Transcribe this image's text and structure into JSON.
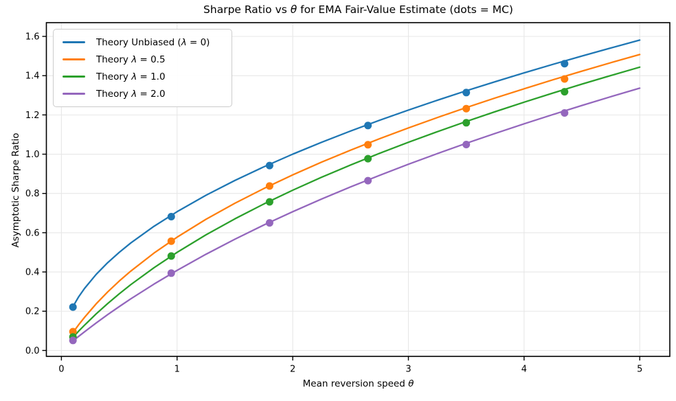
{
  "figure": {
    "title": "Sharpe Ratio vs θ for EMA Fair-Value Estimate (dots = MC)",
    "xlabel": "Mean reversion speed θ",
    "ylabel": "Asymptotic Sharpe Ratio"
  },
  "colors": {
    "blue": "#1f77b4",
    "orange": "#ff7f0e",
    "green": "#2ca02c",
    "purple": "#9467bd",
    "grid": "#e7e7e7",
    "spine": "#000000"
  },
  "legend": {
    "position": "upper left",
    "items": [
      {
        "label": "Theory Unbiased (λ = 0)",
        "color": "#1f77b4"
      },
      {
        "label": "Theory λ = 0.5",
        "color": "#ff7f0e"
      },
      {
        "label": "Theory λ = 1.0",
        "color": "#2ca02c"
      },
      {
        "label": "Theory λ = 2.0",
        "color": "#9467bd"
      }
    ]
  },
  "chart_data": {
    "type": "line",
    "title": "Sharpe Ratio vs θ for EMA Fair-Value Estimate (dots = MC)",
    "xlabel": "Mean reversion speed θ",
    "ylabel": "Asymptotic Sharpe Ratio",
    "xlim": [
      -0.13,
      5.26
    ],
    "ylim": [
      -0.03,
      1.67
    ],
    "x_ticks": [
      0,
      1,
      2,
      3,
      4,
      5
    ],
    "x_tick_labels": [
      "0",
      "1",
      "2",
      "3",
      "4",
      "5"
    ],
    "y_ticks": [
      0.0,
      0.2,
      0.4,
      0.6,
      0.8,
      1.0,
      1.2,
      1.4,
      1.6
    ],
    "y_tick_labels": [
      "0.0",
      "0.2",
      "0.4",
      "0.6",
      "0.8",
      "1.0",
      "1.2",
      "1.4",
      "1.6"
    ],
    "grid": true,
    "legend_position": "upper left",
    "curve_x": [
      0.1,
      0.15,
      0.2,
      0.3,
      0.4,
      0.5,
      0.6,
      0.8,
      1.0,
      1.25,
      1.5,
      1.75,
      2.0,
      2.25,
      2.5,
      2.75,
      3.0,
      3.25,
      3.5,
      3.75,
      4.0,
      4.25,
      4.5,
      4.75,
      5.0
    ],
    "series": [
      {
        "name": "Theory Unbiased (λ = 0)",
        "lambda": 0,
        "color": "#1f77b4",
        "y": [
          0.2236,
          0.2739,
          0.3162,
          0.3873,
          0.4472,
          0.5,
          0.5477,
          0.6325,
          0.7071,
          0.7906,
          0.866,
          0.9354,
          1.0,
          1.0607,
          1.118,
          1.1726,
          1.2247,
          1.2748,
          1.3229,
          1.3693,
          1.4142,
          1.4577,
          1.5,
          1.5411,
          1.5811
        ]
      },
      {
        "name": "Theory λ = 0.5",
        "lambda": 0.5,
        "color": "#ff7f0e",
        "y": [
          0.0913,
          0.1316,
          0.169,
          0.2372,
          0.2981,
          0.3536,
          0.4045,
          0.4961,
          0.5774,
          0.6682,
          0.75,
          0.825,
          0.8944,
          0.9594,
          1.0206,
          1.0786,
          1.1339,
          1.1867,
          1.2374,
          1.2862,
          1.3333,
          1.3789,
          1.423,
          1.4659,
          1.5076
        ]
      },
      {
        "name": "Theory λ = 1.0",
        "lambda": 1.0,
        "color": "#2ca02c",
        "y": [
          0.0674,
          0.0989,
          0.1291,
          0.1861,
          0.239,
          0.2887,
          0.3354,
          0.4216,
          0.5,
          0.5893,
          0.6708,
          0.7462,
          0.8165,
          0.8825,
          0.9449,
          1.0042,
          1.0607,
          1.1147,
          1.1667,
          1.2167,
          1.2649,
          1.3116,
          1.3568,
          1.4007,
          1.4434
        ]
      },
      {
        "name": "Theory λ = 2.0",
        "lambda": 2.0,
        "color": "#9467bd",
        "y": [
          0.0488,
          0.0723,
          0.0953,
          0.1399,
          0.1826,
          0.2236,
          0.2631,
          0.3381,
          0.4082,
          0.4903,
          0.5669,
          0.639,
          0.7071,
          0.7717,
          0.8333,
          0.8922,
          0.9487,
          1.003,
          1.0553,
          1.1058,
          1.1547,
          1.2021,
          1.2481,
          1.2928,
          1.3363
        ]
      }
    ],
    "mc_x": [
      0.1,
      0.95,
      1.8,
      2.65,
      3.5,
      4.35
    ],
    "mc_series": [
      {
        "name": "MC λ = 0",
        "color": "#1f77b4",
        "y": [
          0.221,
          0.682,
          0.942,
          1.146,
          1.314,
          1.461
        ]
      },
      {
        "name": "MC λ = 0.5",
        "color": "#ff7f0e",
        "y": [
          0.096,
          0.557,
          0.838,
          1.048,
          1.232,
          1.383
        ]
      },
      {
        "name": "MC λ = 1.0",
        "color": "#2ca02c",
        "y": [
          0.069,
          0.481,
          0.757,
          0.977,
          1.16,
          1.318
        ]
      },
      {
        "name": "MC λ = 2.0",
        "color": "#9467bd",
        "y": [
          0.051,
          0.394,
          0.65,
          0.865,
          1.049,
          1.21
        ]
      }
    ]
  }
}
